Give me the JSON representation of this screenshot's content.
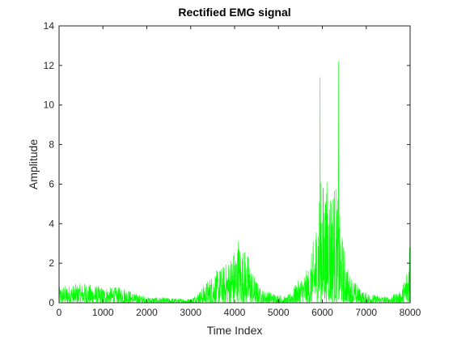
{
  "chart_data": {
    "type": "line",
    "title": "Rectified EMG signal",
    "xlabel": "Time Index",
    "ylabel": "Amplitude",
    "xlim": [
      0,
      8000
    ],
    "ylim": [
      0,
      14
    ],
    "x_ticks": [
      0,
      1000,
      2000,
      3000,
      4000,
      5000,
      6000,
      7000,
      8000
    ],
    "y_ticks": [
      0,
      2,
      4,
      6,
      8,
      10,
      12,
      14
    ],
    "x_tick_labels": [
      "0",
      "1000",
      "2000",
      "3000",
      "4000",
      "5000",
      "6000",
      "7000",
      "8000"
    ],
    "y_tick_labels": [
      "0",
      "2",
      "4",
      "6",
      "8",
      "10",
      "12",
      "14"
    ],
    "grid": false,
    "series": [
      {
        "color": "#00ff00",
        "envelope": [
          [
            0,
            0.8
          ],
          [
            200,
            0.9
          ],
          [
            600,
            1.0
          ],
          [
            1000,
            0.8
          ],
          [
            1500,
            0.8
          ],
          [
            1700,
            0.5
          ],
          [
            2000,
            0.3
          ],
          [
            2500,
            0.25
          ],
          [
            3000,
            0.2
          ],
          [
            3200,
            0.6
          ],
          [
            3500,
            1.5
          ],
          [
            3800,
            2.0
          ],
          [
            4000,
            2.8
          ],
          [
            4100,
            3.1
          ],
          [
            4300,
            2.5
          ],
          [
            4400,
            1.6
          ],
          [
            4600,
            0.7
          ],
          [
            4900,
            0.5
          ],
          [
            5200,
            0.3
          ],
          [
            5400,
            1.0
          ],
          [
            5700,
            1.8
          ],
          [
            5850,
            4.0
          ],
          [
            5950,
            6.2
          ],
          [
            6100,
            6.3
          ],
          [
            6300,
            6.2
          ],
          [
            6450,
            3.5
          ],
          [
            6600,
            1.5
          ],
          [
            6900,
            0.6
          ],
          [
            7200,
            0.4
          ],
          [
            7500,
            0.3
          ],
          [
            7800,
            0.6
          ],
          [
            7900,
            1.5
          ],
          [
            8000,
            2.8
          ]
        ],
        "spikes": [
          {
            "x": 5950,
            "y": 11.4
          },
          {
            "x": 6370,
            "y": 12.2
          },
          {
            "x": 4090,
            "y": 3.1
          },
          {
            "x": 7985,
            "y": 2.8
          }
        ]
      }
    ]
  }
}
